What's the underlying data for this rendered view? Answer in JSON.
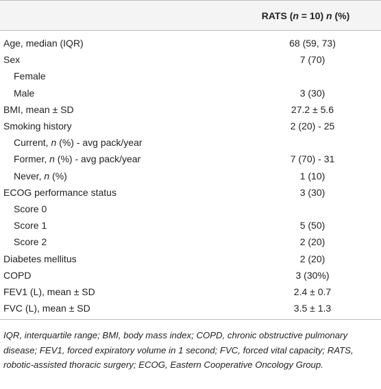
{
  "table": {
    "header": [
      "RATS (",
      "n",
      " = 10) ",
      "n",
      " (%)"
    ],
    "rows": [
      {
        "label": "Age, median (IQR)",
        "value": "68 (59, 73)"
      },
      {
        "label": "Sex",
        "value": "7 (70)",
        "children": [
          {
            "label": "Female"
          },
          {
            "label": "Male",
            "value": "3 (30)"
          }
        ]
      },
      {
        "label": "BMI, mean ± SD",
        "value": "27.2 ± 5.6"
      },
      {
        "label": "Smoking history",
        "value": "2 (20) - 25",
        "children": [
          {
            "label": [
              "Current, ",
              "n",
              " (%) - avg pack/year"
            ]
          },
          {
            "label": [
              "Former, ",
              "n",
              " (%) - avg pack/year"
            ],
            "value": "7 (70) - 31"
          },
          {
            "label": [
              "Never, ",
              "n",
              " (%)"
            ],
            "value": "1 (10)"
          }
        ]
      },
      {
        "label": "ECOG performance status",
        "value": "3 (30)",
        "children": [
          {
            "label": "Score 0"
          },
          {
            "label": "Score 1",
            "value": "5 (50)"
          },
          {
            "label": "Score 2",
            "value": "2 (20)"
          }
        ]
      },
      {
        "label": "Diabetes mellitus",
        "value": "2 (20)"
      },
      {
        "label": "COPD",
        "value": "3 (30%)"
      },
      {
        "label": "FEV1 (L), mean ± SD",
        "value": "2.4 ± 0.7"
      },
      {
        "label": "FVC (L), mean ± SD",
        "value": "3.5 ± 1.3"
      }
    ],
    "footnote": "IQR, interquartile range; BMI, body mass index; COPD, chronic obstructive pulmonary disease; FEV1, forced expiratory volume in 1 second; FVC, forced vital capacity; RATS, robotic-assisted thoracic surgery; ECOG, Eastern Cooperative Oncology Group."
  }
}
